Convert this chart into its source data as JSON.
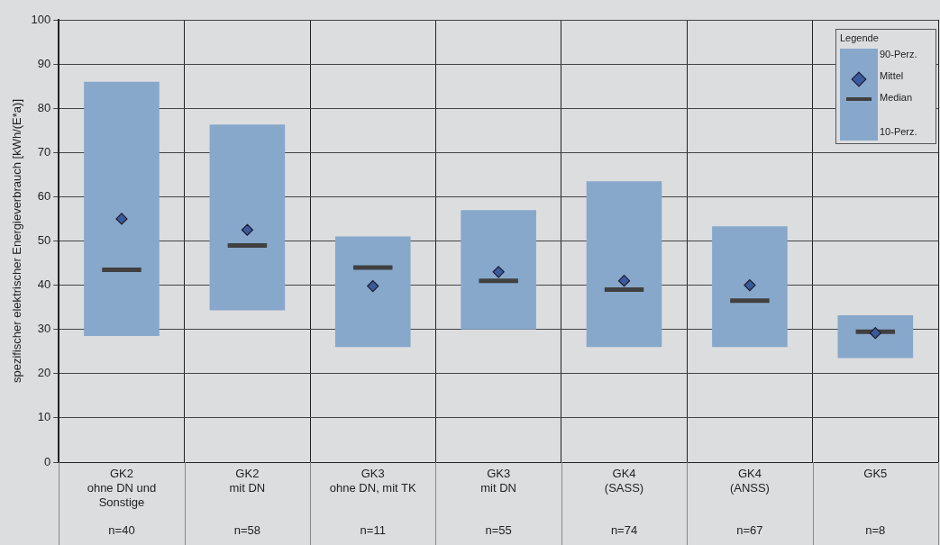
{
  "chart_data": {
    "type": "box",
    "ylabel": "spezifischer elektrischer Energieverbrauch [kWh/(E*a)]",
    "categories": [
      "GK2\nohne DN und\nSonstige\nn=40",
      "GK2\nmit DN\nn=58",
      "GK3\nohne DN, mit TK\nn=11",
      "GK3\nmit DN\nn=55",
      "GK4\n(SASS)\nn=74",
      "GK4\n(ANSS)\nn=67",
      "GK5\nn=8"
    ],
    "series": [
      {
        "color": "#87a8cb",
        "boxes": [
          {
            "low": 28.5,
            "q1": 28.5,
            "median": 43.5,
            "q3": 86,
            "high": 86,
            "mean": 55
          },
          {
            "low": 34.3,
            "q1": 34.3,
            "median": 49,
            "q3": 76.3,
            "high": 76.3,
            "mean": 52.5
          },
          {
            "low": 26,
            "q1": 26,
            "median": 44,
            "q3": 51,
            "high": 51,
            "mean": 39.8
          },
          {
            "low": 30,
            "q1": 30,
            "median": 41,
            "q3": 57,
            "high": 57,
            "mean": 43
          },
          {
            "low": 26,
            "q1": 26,
            "median": 39,
            "q3": 63.5,
            "high": 63.5,
            "mean": 41
          },
          {
            "low": 26,
            "q1": 26,
            "median": 36.5,
            "q3": 53.3,
            "high": 53.3,
            "mean": 40
          },
          {
            "low": 23.5,
            "q1": 23.5,
            "median": 29.5,
            "q3": 33.2,
            "high": 33.2,
            "mean": 29.2
          }
        ]
      }
    ],
    "legend_title": "Legende",
    "annotations": [
      "90-Perz.",
      "Mittel",
      "Median",
      "10-Perz."
    ],
    "ylim": [
      0,
      100
    ],
    "yticks": [
      0,
      10,
      20,
      30,
      40,
      50,
      60,
      70,
      80,
      90,
      100
    ],
    "grid": true
  }
}
